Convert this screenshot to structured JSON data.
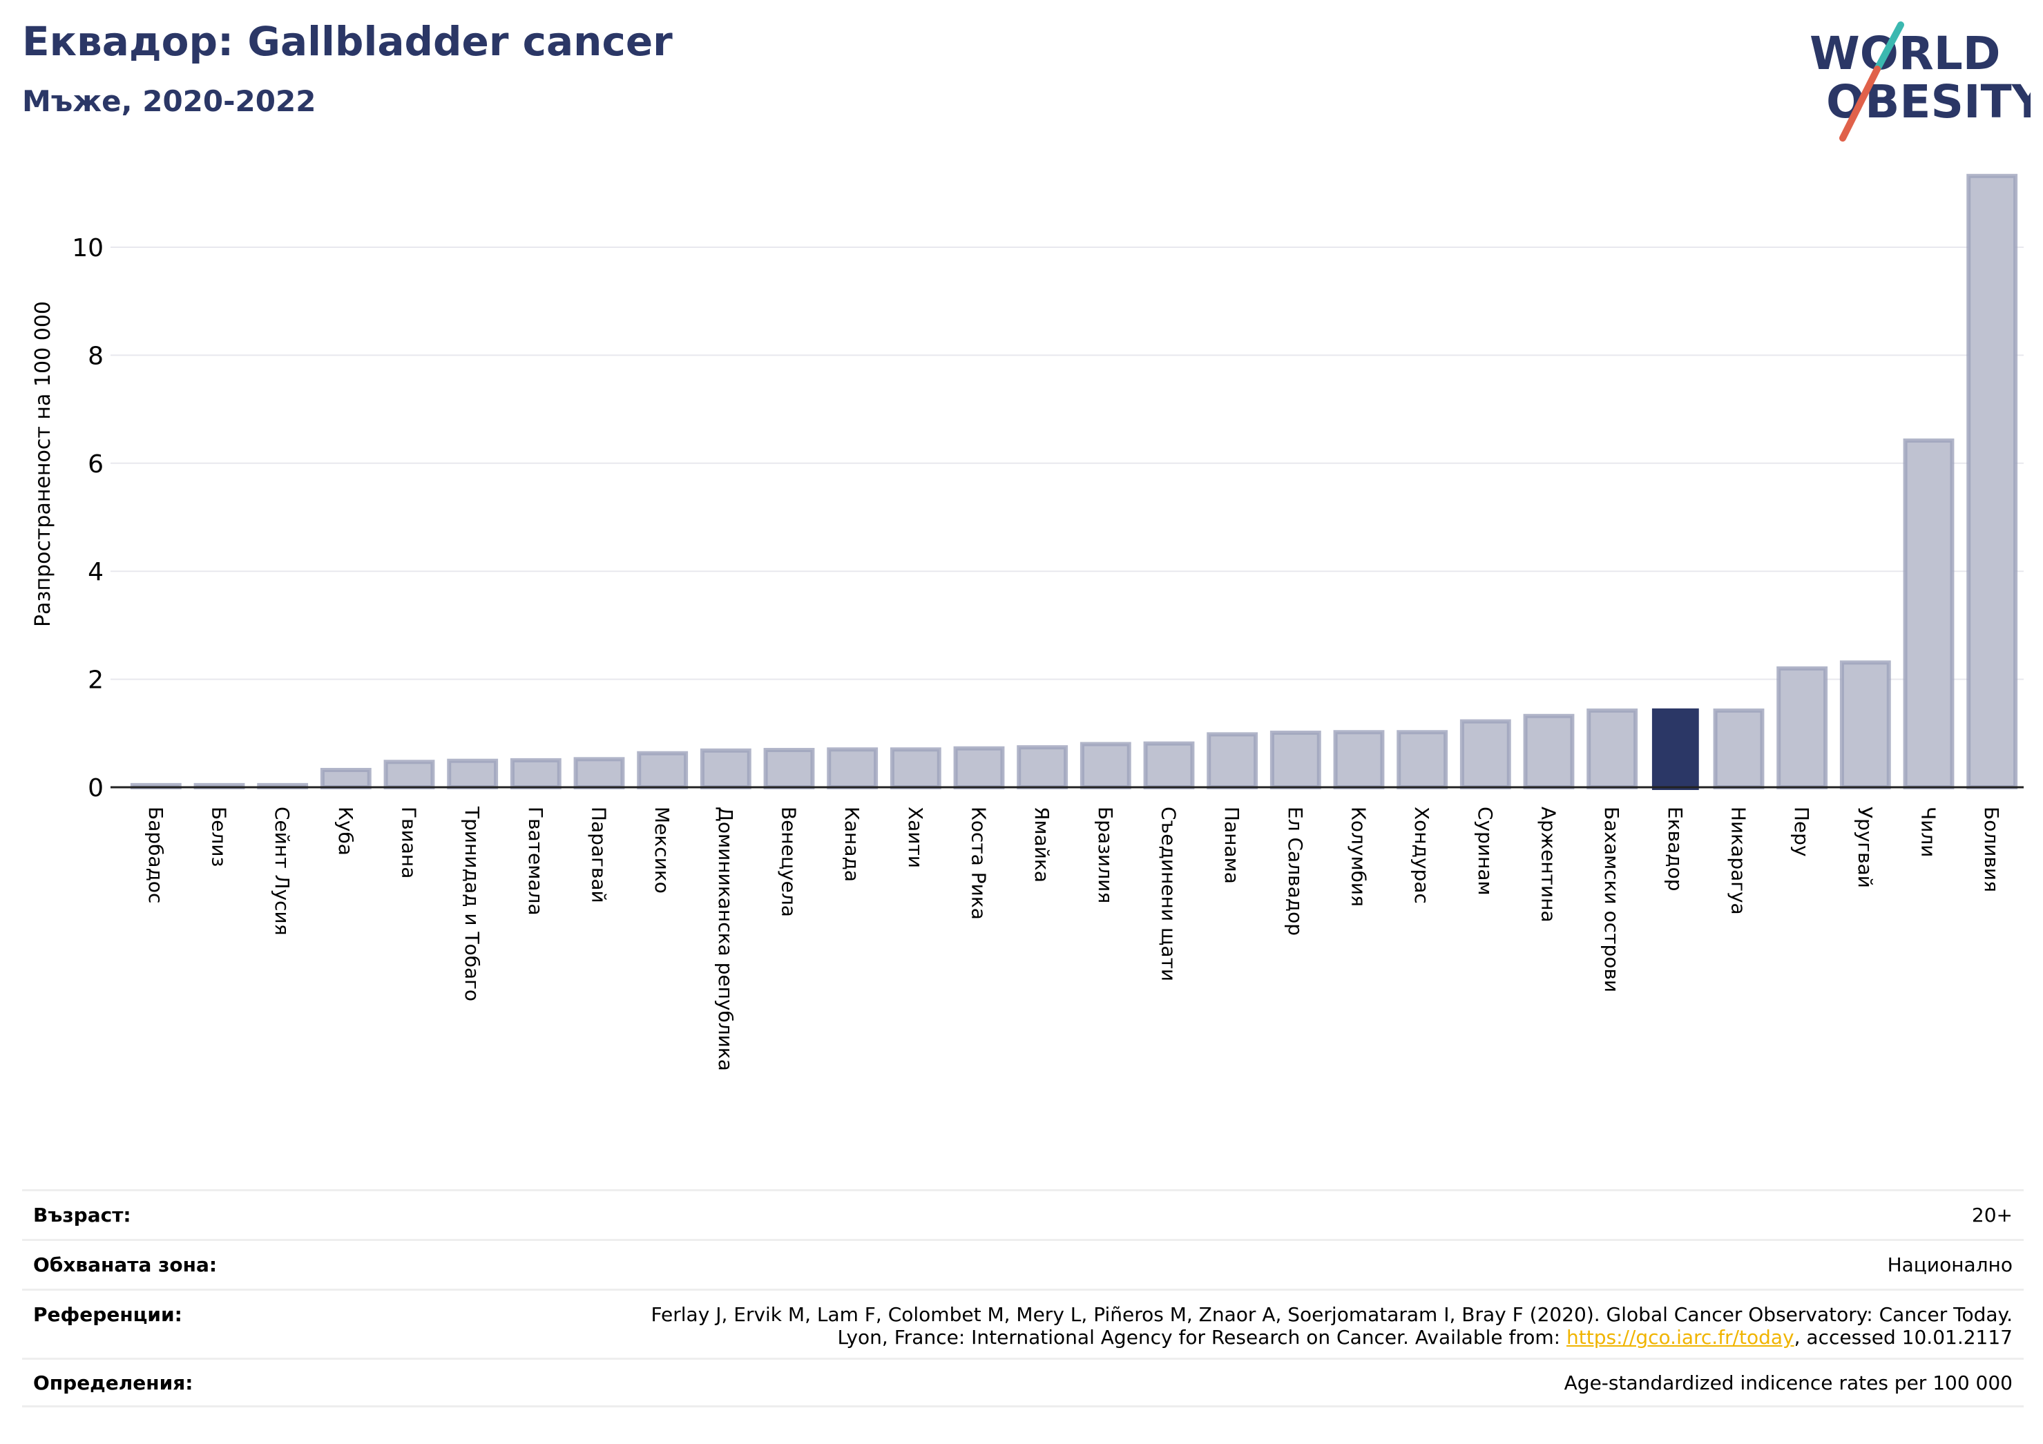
{
  "header": {
    "title": "Еквадор: Gallbladder cancer",
    "subtitle": "Мъже, 2020-2022"
  },
  "logo": {
    "line1": "WORLD",
    "line2": "OBESITY",
    "colors": {
      "text": "#2b3766",
      "slash_teal": "#3bb8b0",
      "slash_red": "#e0614a"
    }
  },
  "chart_data": {
    "type": "bar",
    "ylabel": "Разпространеност  на 100 000",
    "ylim": [
      0,
      11.5
    ],
    "yticks": [
      0,
      2,
      4,
      6,
      8,
      10
    ],
    "grid": true,
    "highlight": "Еквадор",
    "colors": {
      "bar": "#bfc2d1",
      "bar_edge": "#9ea3bb",
      "highlight": "#2b3766"
    },
    "categories": [
      "Барбадос",
      "Белиз",
      "Сейнт Лусия",
      "Куба",
      "Гвиана",
      "Тринидад и Тобаго",
      "Гватемала",
      "Парагвай",
      "Мексико",
      "Доминиканска република",
      "Венецуела",
      "Канада",
      "Хаити",
      "Коста Рика",
      "Ямайка",
      "Бразилия",
      "Съединени щати",
      "Панама",
      "Ел Салвадор",
      "Колумбия",
      "Хондурас",
      "Суринам",
      "Аржентина",
      "Бахамски острови",
      "Еквадор",
      "Никарагуа",
      "Перу",
      "Уругвай",
      "Чили",
      "Боливия"
    ],
    "values": [
      0.04,
      0.04,
      0.04,
      0.32,
      0.47,
      0.49,
      0.5,
      0.52,
      0.63,
      0.68,
      0.69,
      0.7,
      0.7,
      0.72,
      0.74,
      0.8,
      0.81,
      0.98,
      1.01,
      1.02,
      1.02,
      1.22,
      1.32,
      1.42,
      1.46,
      1.42,
      2.2,
      2.31,
      6.42,
      11.32
    ]
  },
  "info": [
    {
      "label": "Възраст:",
      "value": [
        "20+"
      ]
    },
    {
      "label": "Обхваната зона:",
      "value": [
        "Национално"
      ]
    },
    {
      "label": "Референции:",
      "value": [
        "Ferlay J, Ervik M, Lam F, Colombet M, Mery L, Piñeros M, Znaor A, Soerjomataram I, Bray F (2020). Global Cancer Observatory: Cancer Today."
      ],
      "line2_prefix": "Lyon, France: International Agency for Research on Cancer. Available from: ",
      "line2_link": "https://gco.iarc.fr/today",
      "line2_suffix": ", accessed 10.01.2117"
    },
    {
      "label": "Определения:",
      "value": [
        "Age-standardized indicence rates per 100 000"
      ]
    }
  ]
}
